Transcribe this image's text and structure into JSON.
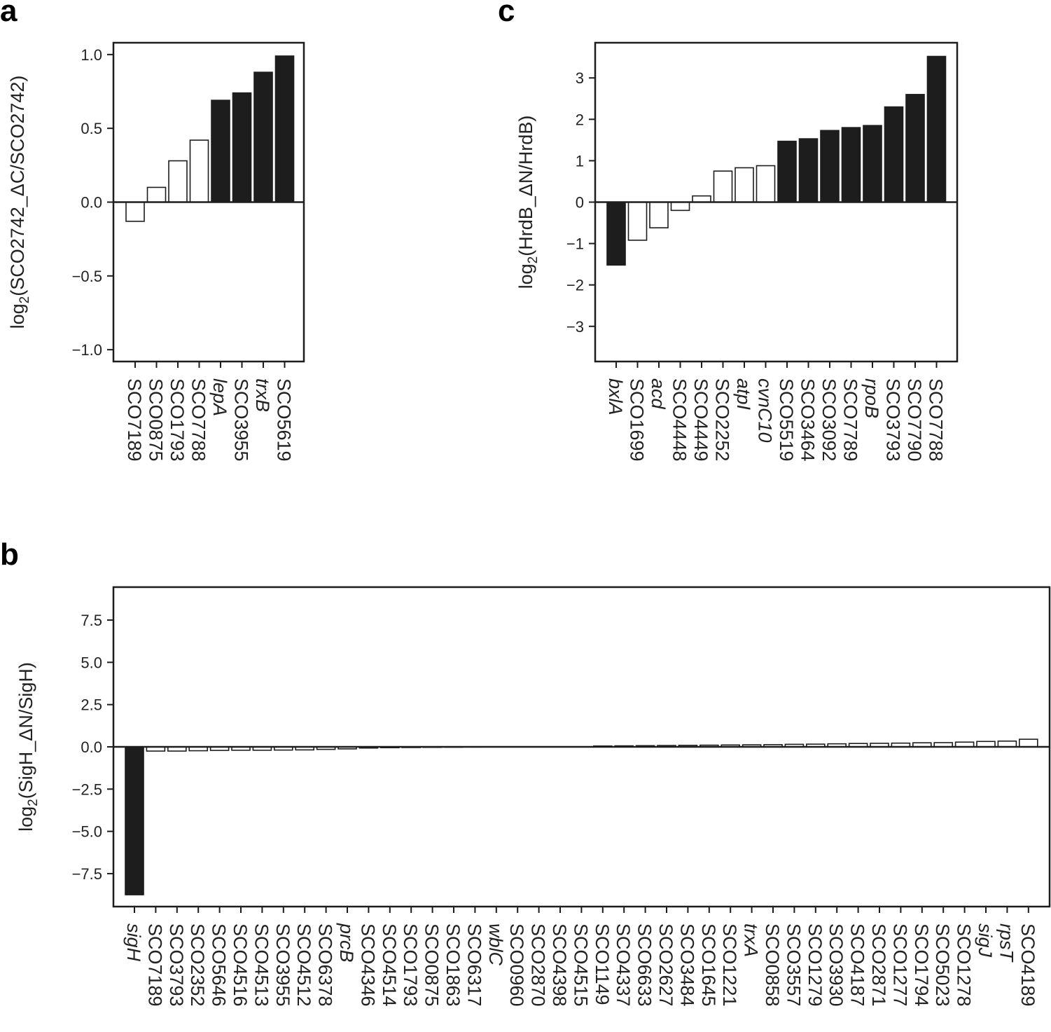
{
  "colors": {
    "filled": "#1d1d1d",
    "open": "#ffffff",
    "stroke": "#1d1d1d"
  },
  "chart_data": [
    {
      "panel": "a",
      "type": "bar",
      "ylabel_prefix": "log",
      "ylabel_sub": "2",
      "ylabel_rest": "(SCO2742_ΔC/SCO2742)",
      "ylim": [
        -1.08,
        1.08
      ],
      "yticks": [
        1.0,
        0.5,
        0.0,
        -0.5,
        -1.0
      ],
      "ytick_labels": [
        "1.0",
        "0.5",
        "0.0",
        "−0.5",
        "−1.0"
      ],
      "categories": [
        "SCO7189",
        "SCO0875",
        "SCO1793",
        "SCO7788",
        "lepA",
        "SCO3955",
        "trxB",
        "SCO5619"
      ],
      "italic": [
        false,
        false,
        false,
        false,
        true,
        false,
        true,
        false
      ],
      "values": [
        -0.13,
        0.1,
        0.28,
        0.42,
        0.69,
        0.74,
        0.88,
        0.99
      ],
      "filled": [
        false,
        false,
        false,
        false,
        true,
        true,
        true,
        true
      ]
    },
    {
      "panel": "c",
      "type": "bar",
      "ylabel_prefix": "log",
      "ylabel_sub": "2",
      "ylabel_rest": "(HrdB_ΔN/HrdB)",
      "ylim": [
        -3.85,
        3.85
      ],
      "yticks": [
        3,
        2,
        1,
        0,
        -1,
        -2,
        -3
      ],
      "ytick_labels": [
        "3",
        "2",
        "1",
        "0",
        "−1",
        "−2",
        "−3"
      ],
      "categories": [
        "bxlA",
        "SCO1699",
        "acd",
        "SCO4448",
        "SCO4449",
        "SCO2252",
        "atpI",
        "cvnC10",
        "SCO5519",
        "SCO3464",
        "SCO3092",
        "SCO7789",
        "rpoB",
        "SCO3793",
        "SCO7790",
        "SCO7788"
      ],
      "italic": [
        true,
        false,
        true,
        false,
        false,
        false,
        true,
        true,
        false,
        false,
        false,
        false,
        true,
        false,
        false,
        false
      ],
      "values": [
        -1.52,
        -0.92,
        -0.62,
        -0.2,
        0.15,
        0.75,
        0.83,
        0.88,
        1.47,
        1.53,
        1.73,
        1.8,
        1.85,
        2.3,
        2.6,
        3.52
      ],
      "filled": [
        true,
        false,
        false,
        false,
        false,
        false,
        false,
        false,
        true,
        true,
        true,
        true,
        true,
        true,
        true,
        true
      ]
    },
    {
      "panel": "b",
      "type": "bar",
      "ylabel_prefix": "log",
      "ylabel_sub": "2",
      "ylabel_rest": "(SigH_ΔN/SigH)",
      "ylim": [
        -9.45,
        9.45
      ],
      "yticks": [
        7.5,
        5.0,
        2.5,
        0.0,
        -2.5,
        -5.0,
        -7.5
      ],
      "ytick_labels": [
        "7.5",
        "5.0",
        "2.5",
        "0.0",
        "−2.5",
        "−5.0",
        "−7.5"
      ],
      "categories": [
        "sigH",
        "SCO7189",
        "SCO3793",
        "SCO2352",
        "SCO5646",
        "SCO4516",
        "SCO4513",
        "SCO3955",
        "SCO4512",
        "SCO6378",
        "prcB",
        "SCO4346",
        "SCO4514",
        "SCO1793",
        "SCO0875",
        "SCO1863",
        "SCO6317",
        "wblC",
        "SCO0960",
        "SCO2870",
        "SCO4398",
        "SCO4515",
        "SCO1149",
        "SCO4337",
        "SCO6633",
        "SCO2627",
        "SCO3484",
        "SCO1645",
        "SCO1221",
        "trxA",
        "SCO0858",
        "SCO3557",
        "SCO1279",
        "SCO3930",
        "SCO4187",
        "SCO2871",
        "SCO1277",
        "SCO1794",
        "SCO5023",
        "SCO1278",
        "sigJ",
        "rpsT",
        "SCO4189"
      ],
      "italic": [
        true,
        false,
        false,
        false,
        false,
        false,
        false,
        false,
        false,
        false,
        true,
        false,
        false,
        false,
        false,
        false,
        false,
        true,
        false,
        false,
        false,
        false,
        false,
        false,
        false,
        false,
        false,
        false,
        false,
        true,
        false,
        false,
        false,
        false,
        false,
        false,
        false,
        false,
        false,
        false,
        true,
        true,
        false
      ],
      "values": [
        -8.75,
        -0.25,
        -0.25,
        -0.23,
        -0.21,
        -0.2,
        -0.2,
        -0.19,
        -0.18,
        -0.15,
        -0.12,
        -0.07,
        -0.05,
        -0.04,
        -0.03,
        -0.02,
        -0.01,
        0.0,
        0.0,
        0.0,
        0.0,
        0.0,
        0.05,
        0.06,
        0.07,
        0.08,
        0.09,
        0.1,
        0.11,
        0.12,
        0.13,
        0.15,
        0.16,
        0.18,
        0.2,
        0.21,
        0.22,
        0.24,
        0.25,
        0.28,
        0.32,
        0.34,
        0.45
      ],
      "filled": [
        true,
        false,
        false,
        false,
        false,
        false,
        false,
        false,
        false,
        false,
        false,
        false,
        false,
        false,
        false,
        false,
        false,
        false,
        false,
        false,
        false,
        false,
        false,
        false,
        false,
        false,
        false,
        false,
        false,
        false,
        false,
        false,
        false,
        false,
        false,
        false,
        false,
        false,
        false,
        false,
        false,
        false,
        false
      ]
    }
  ]
}
